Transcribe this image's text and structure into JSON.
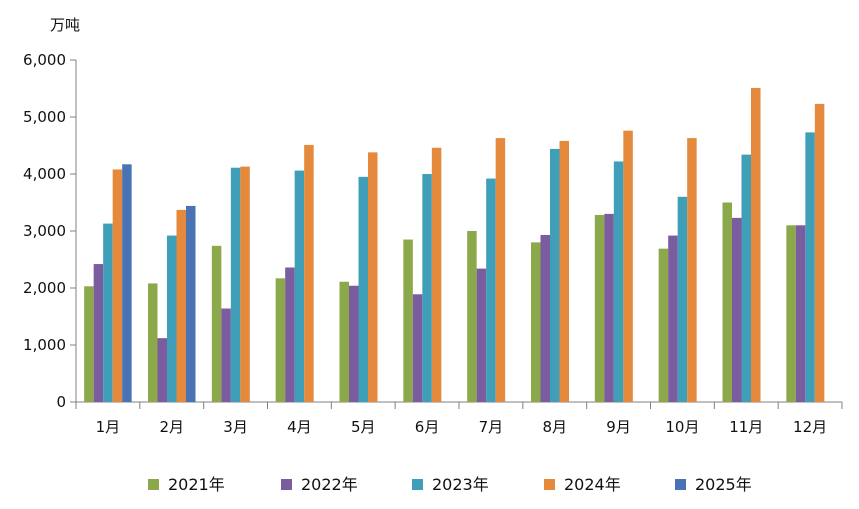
{
  "chart_data": {
    "type": "bar",
    "unit_label": "万吨",
    "categories": [
      "1月",
      "2月",
      "3月",
      "4月",
      "5月",
      "6月",
      "7月",
      "8月",
      "9月",
      "10月",
      "11月",
      "12月"
    ],
    "ylim": [
      0,
      6000
    ],
    "yticks": [
      0,
      1000,
      2000,
      3000,
      4000,
      5000,
      6000
    ],
    "ytick_labels": [
      "0",
      "1,000",
      "2,000",
      "3,000",
      "4,000",
      "5,000",
      "6,000"
    ],
    "grid": false,
    "legend_position": "bottom",
    "series": [
      {
        "name": "2021年",
        "color": "#8BA84A",
        "values": [
          2030,
          2080,
          2740,
          2170,
          2110,
          2850,
          3000,
          2800,
          3280,
          2690,
          3500,
          3100
        ]
      },
      {
        "name": "2022年",
        "color": "#7B5C9E",
        "values": [
          2420,
          1120,
          1640,
          2360,
          2040,
          1890,
          2340,
          2930,
          3300,
          2920,
          3230,
          3100
        ]
      },
      {
        "name": "2023年",
        "color": "#3F9EB8",
        "values": [
          3130,
          2920,
          4110,
          4060,
          3950,
          4000,
          3920,
          4440,
          4220,
          3600,
          4340,
          4730
        ]
      },
      {
        "name": "2024年",
        "color": "#E58A3C",
        "values": [
          4080,
          3370,
          4130,
          4510,
          4380,
          4460,
          4630,
          4580,
          4760,
          4630,
          5510,
          5230
        ]
      },
      {
        "name": "2025年",
        "color": "#4A73B5",
        "values": [
          4170,
          3440,
          null,
          null,
          null,
          null,
          null,
          null,
          null,
          null,
          null,
          null
        ]
      }
    ]
  }
}
